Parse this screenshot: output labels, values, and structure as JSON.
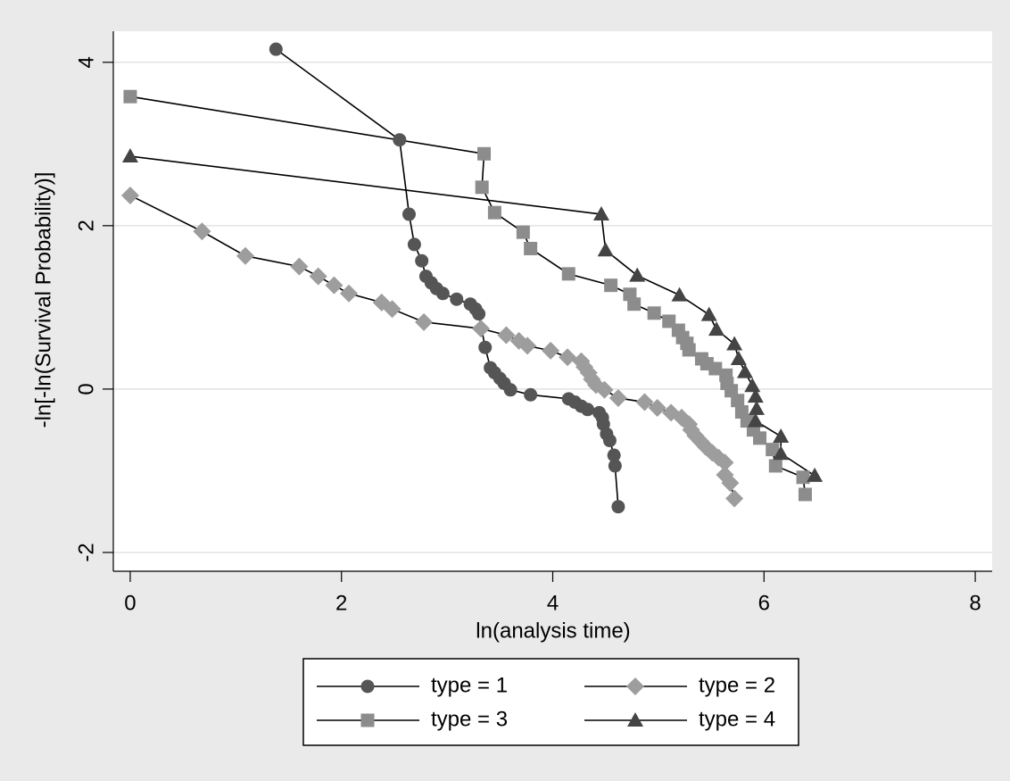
{
  "chart_data": {
    "type": "line",
    "xlabel": "ln(analysis time)",
    "ylabel": "-ln[-ln(Survival Probability)]",
    "xlim": [
      -0.16,
      8.16
    ],
    "ylim": [
      -2.23,
      4.38
    ],
    "xticks": [
      0,
      2,
      4,
      6,
      8
    ],
    "yticks": [
      -2,
      0,
      2,
      4
    ],
    "grid": true,
    "legend": "bottom",
    "line_color": "#000000",
    "series": [
      {
        "name": "type = 1",
        "color": "#555555",
        "marker": "circle",
        "x": [
          1.38,
          2.55,
          2.64,
          2.69,
          2.76,
          2.8,
          2.85,
          2.9,
          2.96,
          3.09,
          3.22,
          3.27,
          3.3,
          3.36,
          3.41,
          3.45,
          3.5,
          3.54,
          3.6,
          3.79,
          4.15,
          4.21,
          4.27,
          4.33,
          4.44,
          4.47,
          4.48,
          4.51,
          4.54,
          4.58,
          4.59,
          4.62
        ],
        "values": [
          4.16,
          3.05,
          2.14,
          1.77,
          1.57,
          1.38,
          1.3,
          1.23,
          1.17,
          1.1,
          1.04,
          0.98,
          0.92,
          0.51,
          0.26,
          0.2,
          0.13,
          0.07,
          -0.01,
          -0.07,
          -0.12,
          -0.16,
          -0.21,
          -0.25,
          -0.29,
          -0.35,
          -0.43,
          -0.55,
          -0.63,
          -0.81,
          -0.94,
          -1.44
        ]
      },
      {
        "name": "type = 2",
        "color": "#9d9d9d",
        "marker": "diamond",
        "x": [
          0,
          0.68,
          1.09,
          1.6,
          1.78,
          1.93,
          2.07,
          2.38,
          2.48,
          2.78,
          3.32,
          3.56,
          3.68,
          3.76,
          3.98,
          4.14,
          4.27,
          4.3,
          4.34,
          4.37,
          4.41,
          4.49,
          4.62,
          4.87,
          4.99,
          5.12,
          5.22,
          5.29,
          5.31,
          5.35,
          5.4,
          5.45,
          5.51,
          5.57,
          5.63,
          5.63,
          5.68,
          5.72
        ],
        "values": [
          2.37,
          1.93,
          1.63,
          1.5,
          1.38,
          1.27,
          1.17,
          1.06,
          0.98,
          0.82,
          0.74,
          0.66,
          0.59,
          0.53,
          0.47,
          0.39,
          0.34,
          0.27,
          0.2,
          0.12,
          0.05,
          -0.01,
          -0.11,
          -0.16,
          -0.23,
          -0.29,
          -0.35,
          -0.43,
          -0.5,
          -0.57,
          -0.64,
          -0.71,
          -0.78,
          -0.84,
          -0.9,
          -1.05,
          -1.15,
          -1.34
        ]
      },
      {
        "name": "type = 3",
        "color": "#8c8c8c",
        "marker": "square",
        "x": [
          0,
          3.35,
          3.33,
          3.45,
          3.72,
          3.79,
          4.15,
          4.55,
          4.73,
          4.77,
          4.96,
          5.1,
          5.19,
          5.23,
          5.27,
          5.29,
          5.41,
          5.46,
          5.54,
          5.64,
          5.65,
          5.69,
          5.75,
          5.79,
          5.84,
          5.9,
          5.96,
          6.08,
          6.11,
          6.37,
          6.39
        ],
        "values": [
          3.58,
          2.88,
          2.47,
          2.16,
          1.92,
          1.72,
          1.41,
          1.27,
          1.16,
          1.04,
          0.93,
          0.83,
          0.72,
          0.63,
          0.56,
          0.48,
          0.37,
          0.31,
          0.25,
          0.17,
          0.07,
          -0.02,
          -0.14,
          -0.28,
          -0.39,
          -0.5,
          -0.6,
          -0.74,
          -0.94,
          -1.08,
          -1.29
        ]
      },
      {
        "name": "type = 4",
        "color": "#444444",
        "marker": "triangle",
        "x": [
          0,
          4.46,
          4.5,
          4.8,
          5.2,
          5.48,
          5.55,
          5.72,
          5.76,
          5.82,
          5.89,
          5.92,
          5.93,
          5.92,
          6.16,
          6.16,
          6.48
        ],
        "values": [
          2.85,
          2.14,
          1.7,
          1.39,
          1.15,
          0.91,
          0.73,
          0.55,
          0.37,
          0.21,
          0.04,
          -0.09,
          -0.24,
          -0.39,
          -0.58,
          -0.79,
          -1.06
        ]
      }
    ]
  }
}
